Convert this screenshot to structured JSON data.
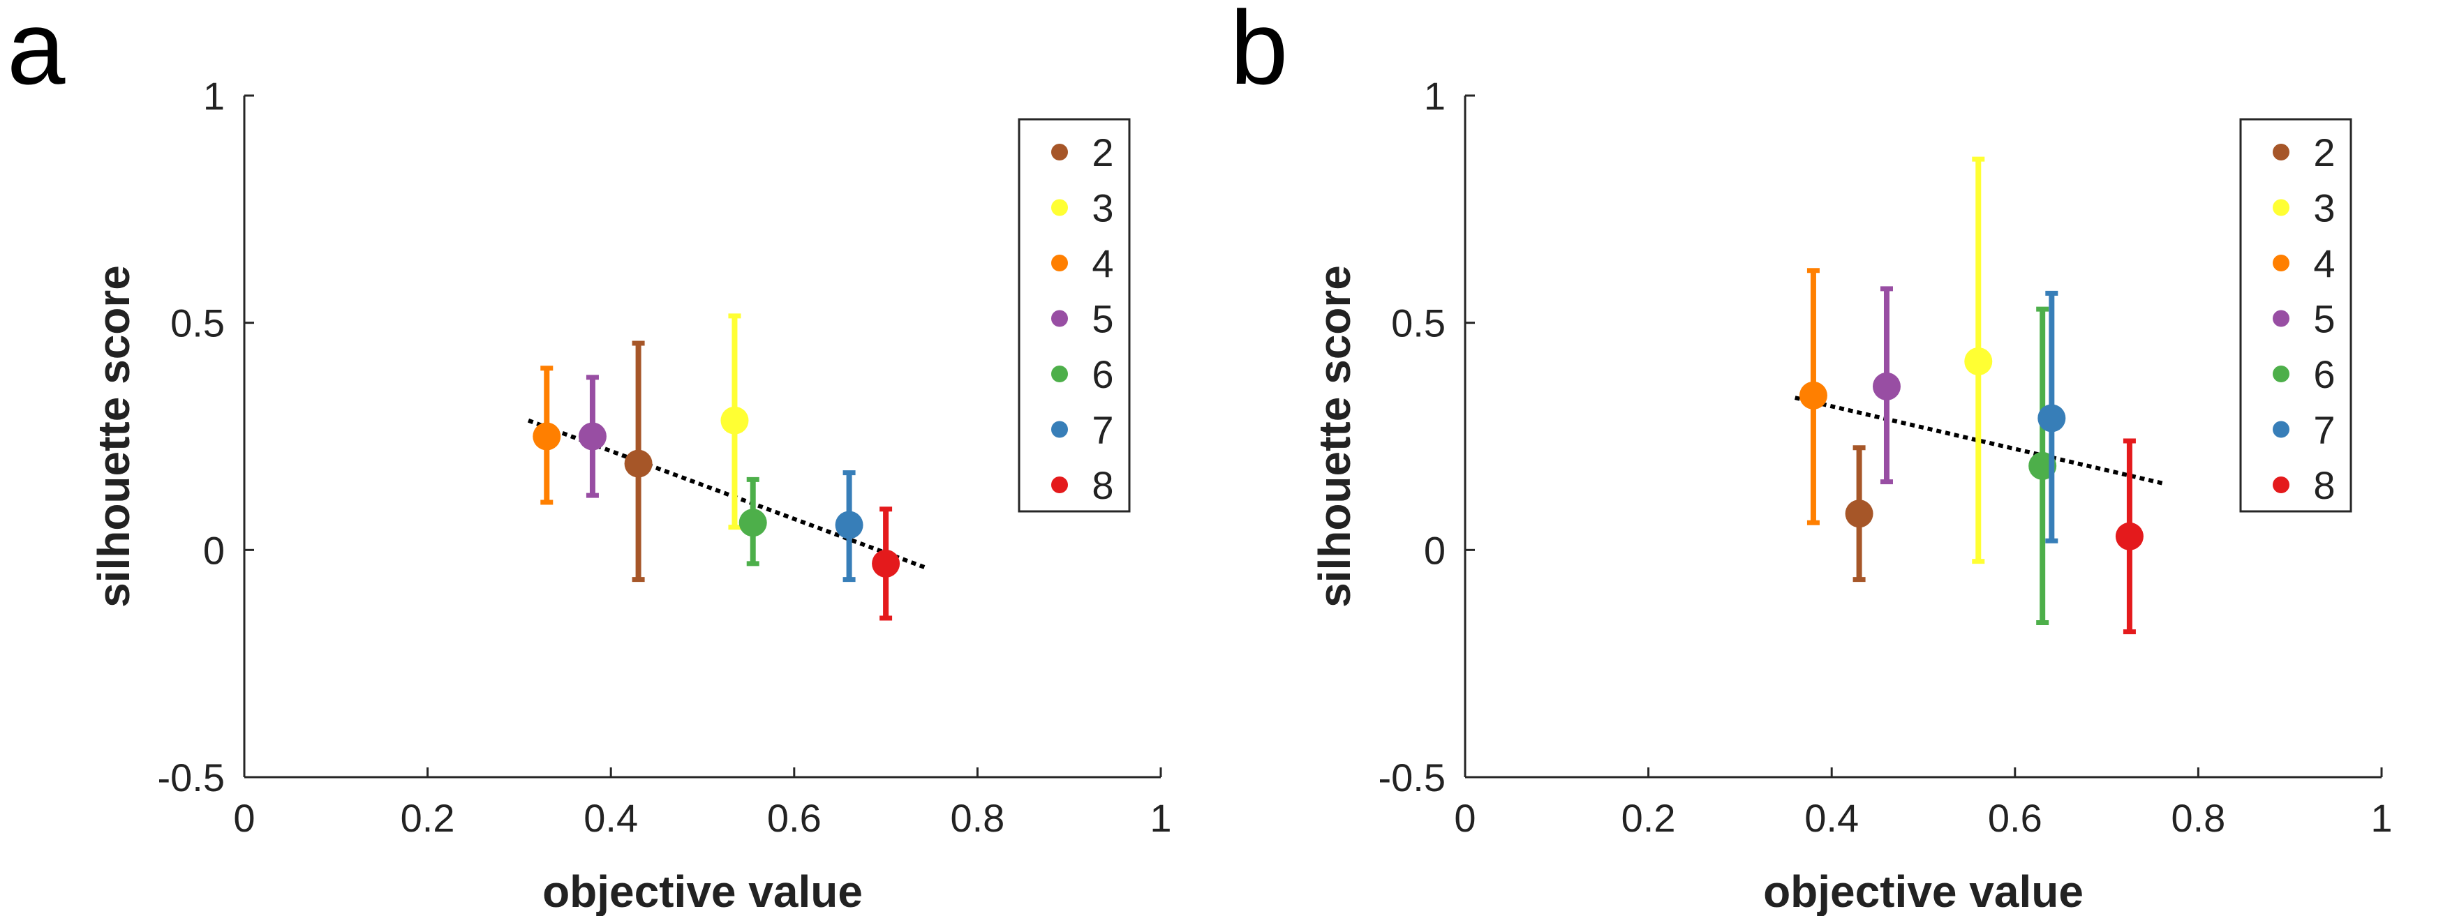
{
  "chart_data": [
    {
      "panel_label": "a",
      "type": "scatter",
      "xlabel": "objective value",
      "ylabel": "silhouette score",
      "xlim": [
        0,
        1
      ],
      "ylim": [
        -0.5,
        1
      ],
      "xticks": [
        "0",
        "0.2",
        "0.4",
        "0.6",
        "0.8",
        "1"
      ],
      "yticks": [
        "-0.5",
        "0",
        "0.5",
        "1"
      ],
      "legend_position": "top-right",
      "series": [
        {
          "name": "2",
          "color": "#a65628",
          "x": 0.43,
          "y": 0.19,
          "ylow": -0.065,
          "yhigh": 0.455
        },
        {
          "name": "3",
          "color": "#ffff33",
          "x": 0.535,
          "y": 0.285,
          "ylow": 0.05,
          "yhigh": 0.515
        },
        {
          "name": "4",
          "color": "#ff7f00",
          "x": 0.33,
          "y": 0.25,
          "ylow": 0.105,
          "yhigh": 0.4
        },
        {
          "name": "5",
          "color": "#984ea3",
          "x": 0.38,
          "y": 0.25,
          "ylow": 0.12,
          "yhigh": 0.38
        },
        {
          "name": "6",
          "color": "#4daf4a",
          "x": 0.555,
          "y": 0.06,
          "ylow": -0.03,
          "yhigh": 0.155
        },
        {
          "name": "7",
          "color": "#377eb8",
          "x": 0.66,
          "y": 0.055,
          "ylow": -0.065,
          "yhigh": 0.17
        },
        {
          "name": "8",
          "color": "#e41a1c",
          "x": 0.7,
          "y": -0.03,
          "ylow": -0.15,
          "yhigh": 0.09
        }
      ],
      "trendline": {
        "x": [
          0.31,
          0.745
        ],
        "y": [
          0.285,
          -0.04
        ]
      }
    },
    {
      "panel_label": "b",
      "type": "scatter",
      "xlabel": "objective value",
      "ylabel": "silhouette score",
      "xlim": [
        0,
        1
      ],
      "ylim": [
        -0.5,
        1
      ],
      "xticks": [
        "0",
        "0.2",
        "0.4",
        "0.6",
        "0.8",
        "1"
      ],
      "yticks": [
        "-0.5",
        "0",
        "0.5",
        "1"
      ],
      "legend_position": "top-right",
      "series": [
        {
          "name": "2",
          "color": "#a65628",
          "x": 0.43,
          "y": 0.08,
          "ylow": -0.065,
          "yhigh": 0.225
        },
        {
          "name": "3",
          "color": "#ffff33",
          "x": 0.56,
          "y": 0.415,
          "ylow": -0.025,
          "yhigh": 0.86
        },
        {
          "name": "4",
          "color": "#ff7f00",
          "x": 0.38,
          "y": 0.34,
          "ylow": 0.06,
          "yhigh": 0.615
        },
        {
          "name": "5",
          "color": "#984ea3",
          "x": 0.46,
          "y": 0.36,
          "ylow": 0.15,
          "yhigh": 0.575
        },
        {
          "name": "6",
          "color": "#4daf4a",
          "x": 0.63,
          "y": 0.185,
          "ylow": -0.16,
          "yhigh": 0.53
        },
        {
          "name": "7",
          "color": "#377eb8",
          "x": 0.64,
          "y": 0.29,
          "ylow": 0.02,
          "yhigh": 0.565
        },
        {
          "name": "8",
          "color": "#e41a1c",
          "x": 0.725,
          "y": 0.03,
          "ylow": -0.18,
          "yhigh": 0.24
        }
      ],
      "trendline": {
        "x": [
          0.36,
          0.765
        ],
        "y": [
          0.335,
          0.145
        ]
      }
    }
  ]
}
